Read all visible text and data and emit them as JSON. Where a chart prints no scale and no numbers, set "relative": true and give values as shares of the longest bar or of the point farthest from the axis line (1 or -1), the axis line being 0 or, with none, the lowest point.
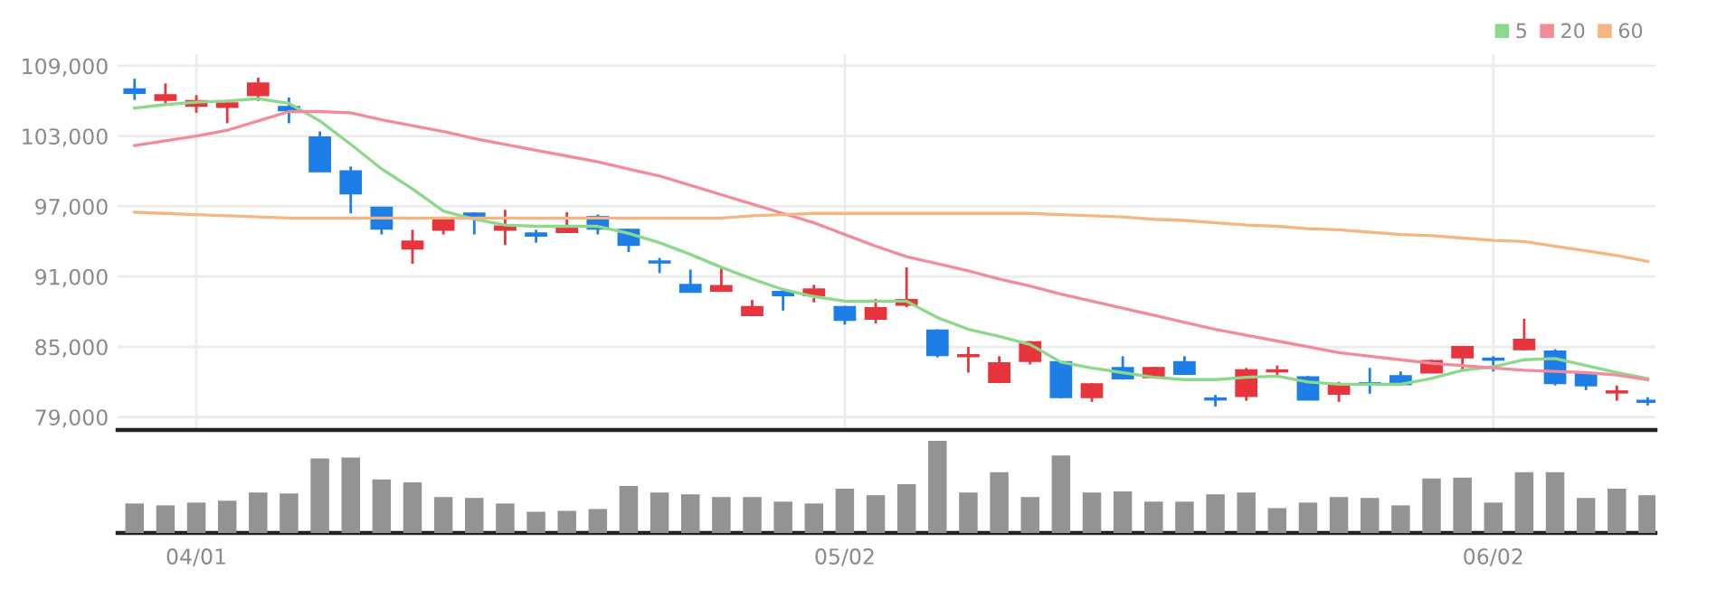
{
  "chart_data": [
    {
      "type": "candlestick",
      "categories": [
        null,
        null,
        null,
        null,
        null,
        null,
        null,
        null,
        null,
        null,
        null,
        null,
        null,
        null,
        null,
        null,
        null,
        null,
        null,
        null,
        null,
        null,
        null,
        null,
        null,
        null,
        null,
        null,
        null,
        null,
        null,
        null,
        null,
        null,
        null,
        null,
        null,
        null,
        null,
        null,
        null,
        null,
        null,
        null,
        null,
        null,
        null,
        null,
        null,
        null
      ],
      "ohlc": [
        [
          107000,
          107900,
          106100,
          106700
        ],
        [
          106100,
          107500,
          105600,
          106500
        ],
        [
          105600,
          106500,
          105000,
          106000
        ],
        [
          105500,
          106100,
          104100,
          105800
        ],
        [
          106500,
          108000,
          106000,
          107500
        ],
        [
          105500,
          106300,
          104100,
          105200
        ],
        [
          102900,
          103400,
          100000,
          100000
        ],
        [
          100000,
          100400,
          96400,
          98100
        ],
        [
          96900,
          96900,
          94600,
          95100
        ],
        [
          93400,
          95000,
          92100,
          94000
        ],
        [
          95000,
          96100,
          94600,
          95800
        ],
        [
          96400,
          96500,
          94600,
          96000
        ],
        [
          95000,
          96700,
          93700,
          95300
        ],
        [
          94700,
          95000,
          93900,
          94500
        ],
        [
          94800,
          96500,
          94800,
          95200
        ],
        [
          96100,
          96300,
          94600,
          95100
        ],
        [
          95000,
          95100,
          93100,
          93700
        ],
        [
          92300,
          92600,
          91300,
          92200
        ],
        [
          90300,
          91600,
          89700,
          89700
        ],
        [
          89800,
          91700,
          89700,
          90200
        ],
        [
          87700,
          89000,
          87700,
          88400
        ],
        [
          89700,
          89900,
          88100,
          89400
        ],
        [
          89400,
          90300,
          88800,
          89900
        ],
        [
          88400,
          88500,
          86900,
          87300
        ],
        [
          87400,
          89100,
          87000,
          88300
        ],
        [
          88600,
          91800,
          88400,
          89000
        ],
        [
          86400,
          86500,
          84100,
          84300
        ],
        [
          84200,
          85000,
          82800,
          84300
        ],
        [
          82000,
          84200,
          81900,
          83600
        ],
        [
          83800,
          85500,
          83500,
          85400
        ],
        [
          83700,
          83800,
          80600,
          80700
        ],
        [
          80700,
          81900,
          80300,
          81800
        ],
        [
          83200,
          84200,
          82200,
          82300
        ],
        [
          82400,
          83300,
          82300,
          83200
        ],
        [
          83700,
          84200,
          82600,
          82700
        ],
        [
          80600,
          80900,
          79900,
          80500
        ],
        [
          80800,
          83200,
          80400,
          83000
        ],
        [
          82900,
          83400,
          82400,
          83000
        ],
        [
          82400,
          82500,
          80500,
          80500
        ],
        [
          81000,
          82000,
          80300,
          81800
        ],
        [
          81900,
          83200,
          81000,
          81800
        ],
        [
          82500,
          82900,
          81700,
          81800
        ],
        [
          82800,
          83900,
          82800,
          83800
        ],
        [
          84100,
          85000,
          82900,
          85000
        ],
        [
          84000,
          84200,
          82900,
          83900
        ],
        [
          84800,
          87400,
          84700,
          85600
        ],
        [
          84600,
          84800,
          81700,
          81900
        ],
        [
          82700,
          82700,
          81300,
          81700
        ],
        [
          81100,
          81700,
          80400,
          81200
        ],
        [
          80400,
          80700,
          80000,
          80300
        ]
      ],
      "colors": [
        "#1c7ee6",
        "#e8343c",
        "#e8343c",
        "#e8343c",
        "#e8343c",
        "#1c7ee6",
        "#1c7ee6",
        "#1c7ee6",
        "#1c7ee6",
        "#e8343c",
        "#e8343c",
        "#1c7ee6",
        "#e8343c",
        "#1c7ee6",
        "#e8343c",
        "#1c7ee6",
        "#1c7ee6",
        "#1c7ee6",
        "#1c7ee6",
        "#e8343c",
        "#e8343c",
        "#1c7ee6",
        "#e8343c",
        "#1c7ee6",
        "#e8343c",
        "#e8343c",
        "#1c7ee6",
        "#e8343c",
        "#e8343c",
        "#e8343c",
        "#1c7ee6",
        "#e8343c",
        "#1c7ee6",
        "#e8343c",
        "#1c7ee6",
        "#1c7ee6",
        "#e8343c",
        "#e8343c",
        "#1c7ee6",
        "#e8343c",
        "#1c7ee6",
        "#1c7ee6",
        "#e8343c",
        "#e8343c",
        "#1c7ee6",
        "#e8343c",
        "#1c7ee6",
        "#1c7ee6",
        "#e8343c",
        "#1c7ee6"
      ],
      "series": [
        {
          "name": "5",
          "type": "line",
          "color": "#8cd98c",
          "values": [
            105400,
            105700,
            105900,
            106000,
            106200,
            105800,
            104300,
            102300,
            100200,
            98500,
            96600,
            95900,
            95400,
            95300,
            95300,
            95300,
            94700,
            93900,
            92900,
            91800,
            90800,
            89900,
            89300,
            88900,
            88900,
            88900,
            87500,
            86500,
            85900,
            85200,
            83700,
            83200,
            82800,
            82400,
            82200,
            82200,
            82400,
            82500,
            82000,
            81800,
            81800,
            81800,
            82300,
            83000,
            83300,
            83900,
            84000,
            83400,
            82800,
            82300
          ]
        },
        {
          "name": "20",
          "type": "line",
          "color": "#f28c9c",
          "values": [
            102200,
            102600,
            103000,
            103500,
            104300,
            105100,
            105100,
            105000,
            104400,
            103900,
            103400,
            102800,
            102300,
            101800,
            101300,
            100800,
            100200,
            99600,
            98800,
            98000,
            97200,
            96400,
            95600,
            94600,
            93600,
            92700,
            92100,
            91500,
            90800,
            90200,
            89500,
            88900,
            88300,
            87700,
            87100,
            86500,
            86000,
            85500,
            85000,
            84500,
            84200,
            83900,
            83600,
            83400,
            83200,
            83000,
            82900,
            82800,
            82600,
            82200
          ]
        },
        {
          "name": "60",
          "type": "line",
          "color": "#f5b682",
          "values": [
            96500,
            96400,
            96300,
            96200,
            96100,
            96000,
            96000,
            96000,
            96000,
            96000,
            96000,
            96000,
            96000,
            96000,
            96000,
            96000,
            96000,
            96000,
            96000,
            96000,
            96200,
            96300,
            96400,
            96400,
            96400,
            96400,
            96400,
            96400,
            96400,
            96400,
            96300,
            96200,
            96100,
            95900,
            95800,
            95600,
            95400,
            95300,
            95100,
            95000,
            94800,
            94600,
            94500,
            94300,
            94100,
            94000,
            93600,
            93200,
            92800,
            92300
          ]
        }
      ],
      "ylim": [
        77900,
        110000
      ],
      "yticks": [
        {
          "value": 79000,
          "label": "79,000"
        },
        {
          "value": 85000,
          "label": "85,000"
        },
        {
          "value": 91000,
          "label": "91,000"
        },
        {
          "value": 97000,
          "label": "97,000"
        },
        {
          "value": 103000,
          "label": "103,000"
        },
        {
          "value": 109000,
          "label": "109,000"
        }
      ],
      "grid": true,
      "legend": "top right",
      "tick_labels": "y"
    },
    {
      "type": "bar",
      "categories": [
        null,
        null,
        "04/01",
        null,
        null,
        null,
        null,
        null,
        null,
        null,
        null,
        null,
        null,
        null,
        null,
        null,
        null,
        null,
        null,
        null,
        null,
        null,
        null,
        "05/02",
        null,
        null,
        null,
        null,
        null,
        null,
        null,
        null,
        null,
        null,
        null,
        null,
        null,
        null,
        null,
        null,
        null,
        null,
        null,
        null,
        "06/02",
        null,
        null,
        null,
        null,
        null
      ],
      "values": [
        0.32,
        0.3,
        0.33,
        0.35,
        0.44,
        0.43,
        0.81,
        0.82,
        0.58,
        0.55,
        0.39,
        0.38,
        0.32,
        0.23,
        0.24,
        0.26,
        0.51,
        0.44,
        0.42,
        0.39,
        0.39,
        0.34,
        0.32,
        0.48,
        0.41,
        0.53,
        1,
        0.44,
        0.66,
        0.39,
        0.84,
        0.44,
        0.45,
        0.34,
        0.34,
        0.42,
        0.44,
        0.27,
        0.33,
        0.39,
        0.38,
        0.3,
        0.59,
        0.6,
        0.33,
        0.66,
        0.66,
        0.38,
        0.48,
        0.41
      ],
      "color": "#939393",
      "relative": true
    }
  ]
}
